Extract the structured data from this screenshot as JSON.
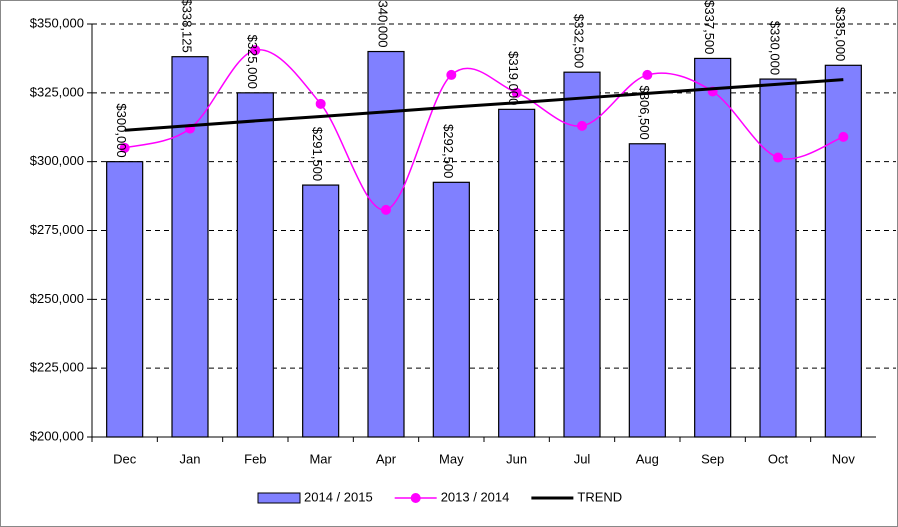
{
  "chart_data": {
    "type": "bar",
    "categories": [
      "Dec",
      "Jan",
      "Feb",
      "Mar",
      "Apr",
      "May",
      "Jun",
      "Jul",
      "Aug",
      "Sep",
      "Oct",
      "Nov"
    ],
    "series": [
      {
        "name": "2014 / 2015",
        "type": "bar",
        "color": "#8080ff",
        "values": [
          300000,
          338125,
          325000,
          291500,
          340000,
          292500,
          319000,
          332500,
          306500,
          337500,
          330000,
          335000
        ],
        "value_labels": [
          "$300,000",
          "$338,125",
          "$325,000",
          "$291,500",
          "$340,000",
          "$292,500",
          "$319,000",
          "$332,500",
          "$306,500",
          "$337,500",
          "$330,000",
          "$335,000"
        ]
      },
      {
        "name": "2013 / 2014",
        "type": "line",
        "smooth": true,
        "color": "#ff00ff",
        "values": [
          305000,
          312000,
          340500,
          321000,
          282500,
          331500,
          325000,
          313000,
          331500,
          325500,
          301500,
          309000
        ]
      },
      {
        "name": "TREND",
        "type": "line",
        "color": "#000000",
        "values": [
          311400,
          313100,
          314800,
          316400,
          318100,
          319800,
          321400,
          323100,
          324800,
          326500,
          328100,
          329800
        ]
      }
    ],
    "ylim": [
      200000,
      350000
    ],
    "yticks": [
      {
        "value": 200000,
        "label": "$200,000"
      },
      {
        "value": 225000,
        "label": "$225,000"
      },
      {
        "value": 250000,
        "label": "$250,000"
      },
      {
        "value": 275000,
        "label": "$275,000"
      },
      {
        "value": 300000,
        "label": "$300,000"
      },
      {
        "value": 325000,
        "label": "$325,000"
      },
      {
        "value": 350000,
        "label": "$350,000"
      }
    ],
    "grid": true,
    "legend": "bottom"
  }
}
